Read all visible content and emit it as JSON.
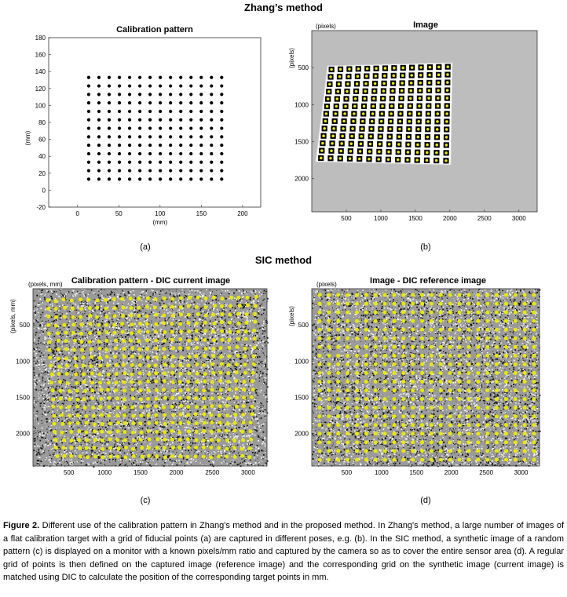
{
  "sections": {
    "zhang": "Zhang’s method",
    "sic": "SIC method"
  },
  "panels": {
    "a": {
      "label": "(a)",
      "chart_data": {
        "type": "scatter",
        "title": "Calibration pattern",
        "xlabel": "(mm)",
        "ylabel": "(mm)",
        "xlim": [
          -35,
          222
        ],
        "ylim": [
          -20,
          180
        ],
        "xticks": [
          0,
          50,
          100,
          150,
          200
        ],
        "yticks": [
          -20,
          0,
          20,
          40,
          60,
          80,
          100,
          120,
          140,
          160,
          180
        ],
        "grid": {
          "x_start": 13.5,
          "x_step": 12.4,
          "x_count": 14,
          "y_start": 13,
          "y_step": 10,
          "y_count": 13
        },
        "grid_lines": false
      }
    },
    "b": {
      "label": "(b)",
      "chart_data": {
        "type": "image",
        "title": "Image",
        "unit": "(pixels)",
        "ylabel": "(pixels)",
        "xlim": [
          0,
          3264
        ],
        "ylim": [
          0,
          2448
        ],
        "xticks": [
          500,
          1000,
          1500,
          2000,
          2500,
          3000
        ],
        "yticks": [
          500,
          1000,
          1500,
          2000
        ],
        "grid": {
          "cols": 14,
          "rows": 13
        }
      }
    },
    "c": {
      "label": "(c)",
      "chart_data": {
        "type": "image",
        "title": "Calibration pattern - DIC current image",
        "unit": "(pixels, mm)",
        "ylabel": "(pixels, mm)",
        "xlim": [
          0,
          3264
        ],
        "ylim": [
          0,
          2448
        ],
        "xticks": [
          500,
          1000,
          1500,
          2000,
          2500,
          3000
        ],
        "yticks": [
          500,
          1000,
          1500,
          2000
        ],
        "grid": {
          "cols": 26,
          "rows": 20
        }
      }
    },
    "d": {
      "label": "(d)",
      "chart_data": {
        "type": "image",
        "title": "Image - DIC reference image",
        "unit": "(pixels)",
        "ylabel": "(pixels)",
        "xlim": [
          0,
          3264
        ],
        "ylim": [
          0,
          2448
        ],
        "xticks": [
          500,
          1000,
          1500,
          2000,
          2500,
          3000
        ],
        "yticks": [
          500,
          1000,
          1500,
          2000
        ],
        "grid": {
          "cols": 24,
          "rows": 20
        }
      }
    }
  },
  "colors": {
    "marker_yellow": "#e8e800",
    "sensor_gray": "#bdbdbd",
    "speckle_dark": "#111111"
  },
  "caption": {
    "figure": "Figure 2.",
    "text": "Different use of the calibration pattern in Zhang's method and in the proposed method. In Zhang's method, a large number of images of a flat calibration target with a grid of fiducial points (a) are captured in different poses, e.g. (b). In the SIC method, a synthetic image of a random pattern (c) is displayed on a monitor with a known pixels/mm ratio and captured by the camera so as to cover the entire sensor area (d). A regular grid of points is then defined on the captured image (reference image) and the corresponding grid on the synthetic image (current image) is matched using DIC to calculate the position of the corresponding target points in mm."
  }
}
